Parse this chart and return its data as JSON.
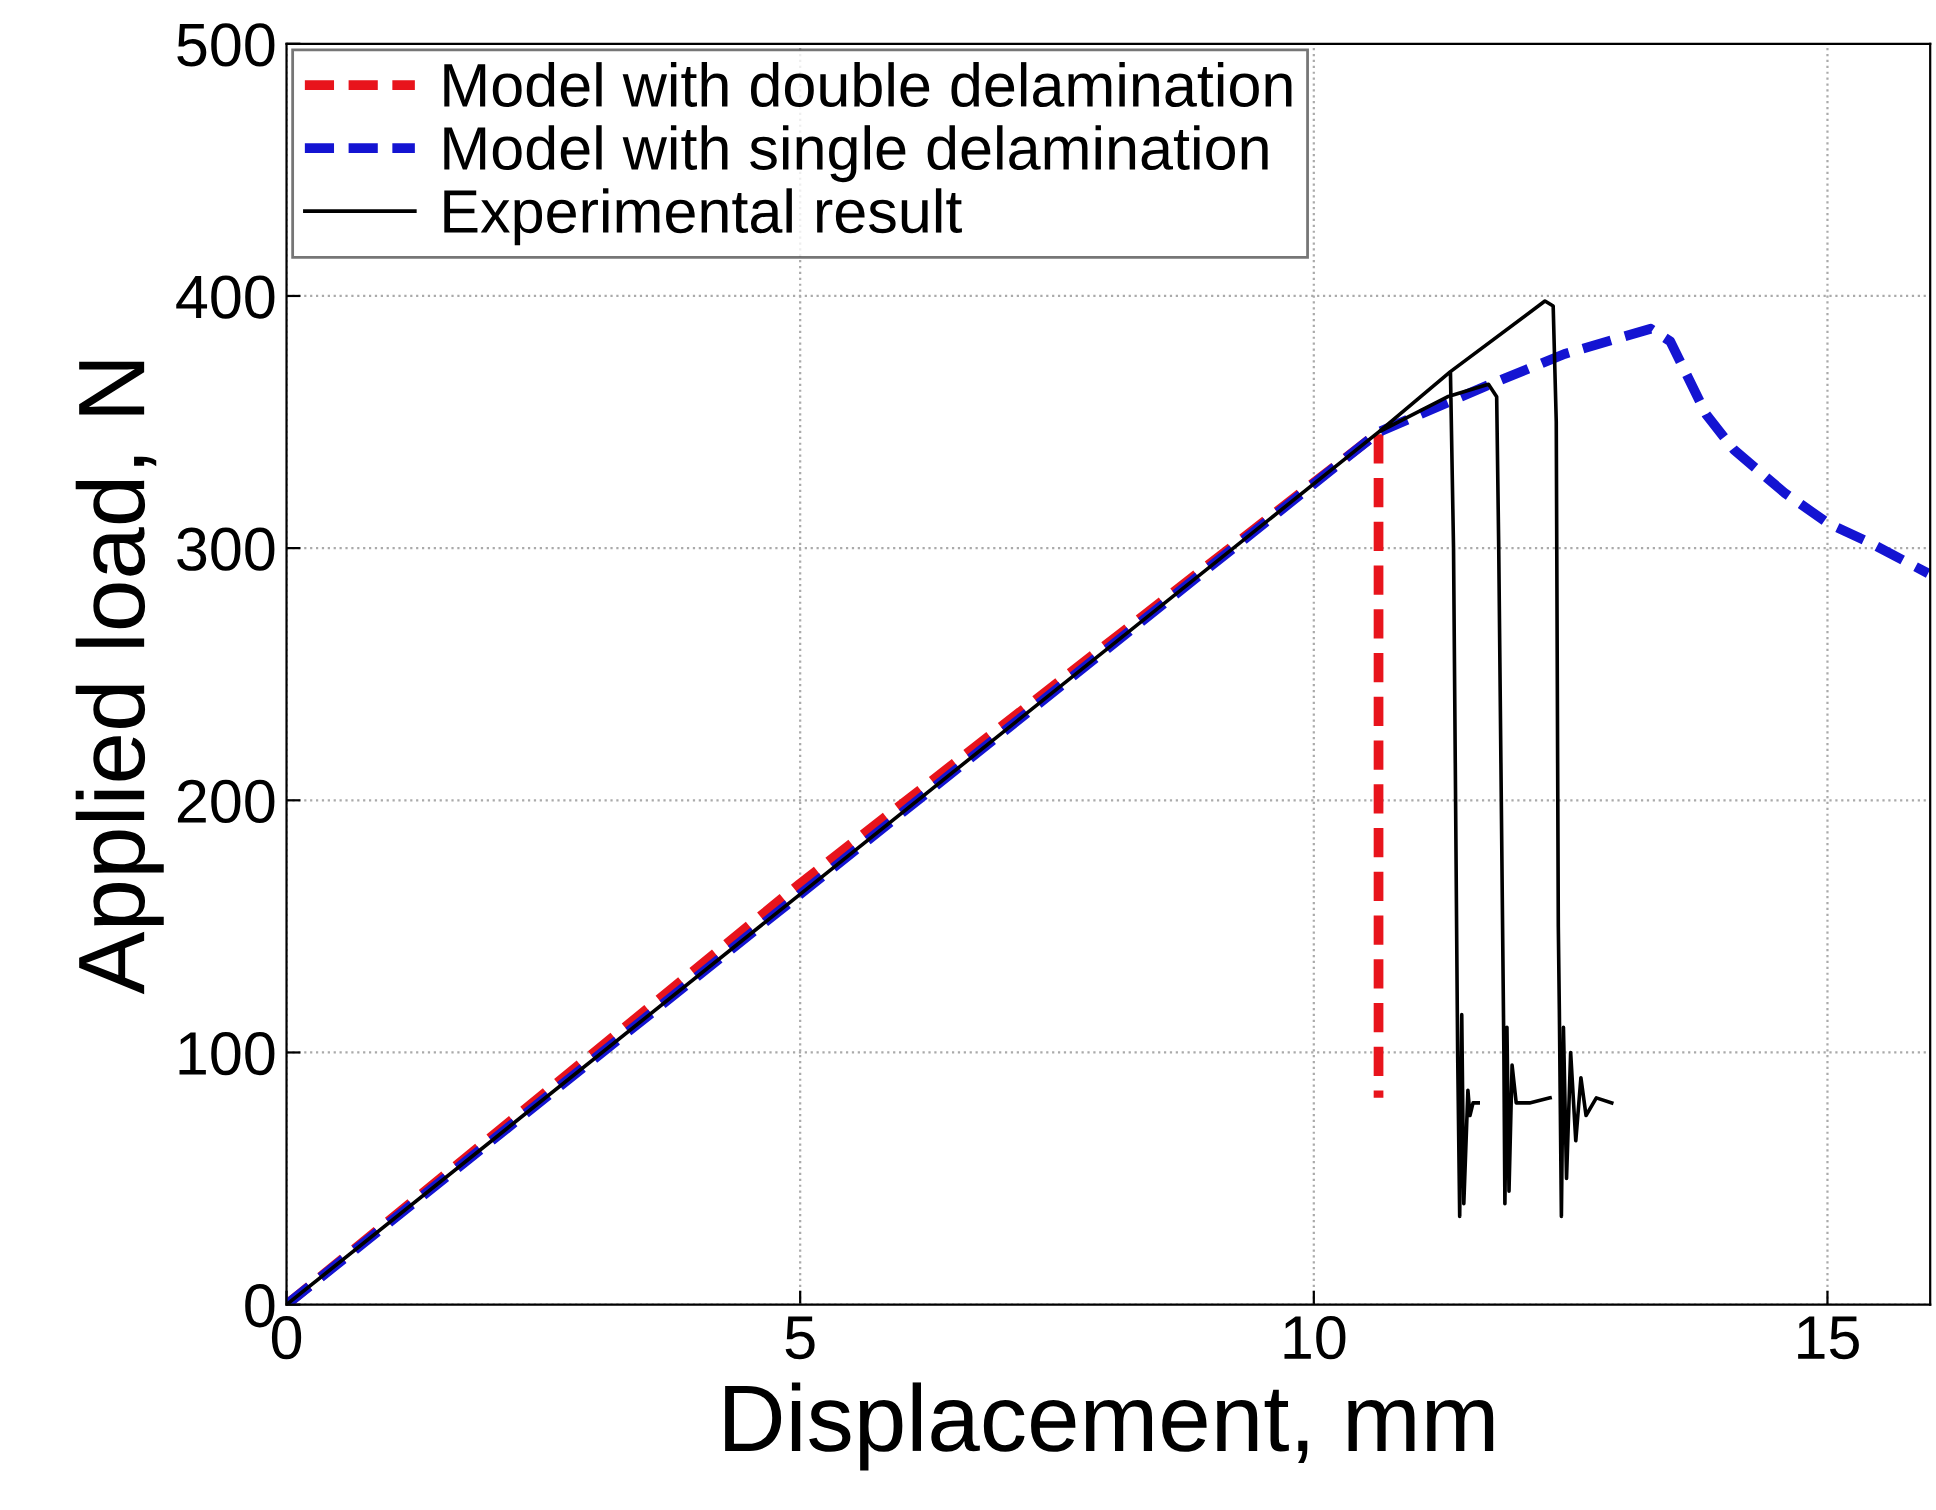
{
  "chart_data": {
    "type": "line",
    "xlabel": "Displacement, mm",
    "ylabel": "Applied load, N",
    "xlim": [
      0,
      16
    ],
    "ylim": [
      0,
      500
    ],
    "xticks": [
      0,
      5,
      10,
      15
    ],
    "yticks": [
      0,
      100,
      200,
      300,
      400,
      500
    ],
    "grid": true,
    "legend": "top left",
    "series": [
      {
        "name": "Model with double delamination",
        "color": "#e8141c",
        "line_style": "dashed",
        "x": [
          0,
          5,
          10.63,
          10.63
        ],
        "values": [
          0,
          167,
          346,
          82
        ]
      },
      {
        "name": "Model with single delamination",
        "color": "#1414d2",
        "line_style": "dashed",
        "x": [
          0,
          10.63,
          11.66,
          12.44,
          13.28,
          13.47,
          13.82,
          14.09,
          14.58,
          15.0,
          15.42,
          15.98
        ],
        "values": [
          0,
          346,
          364,
          377,
          387,
          382,
          353,
          339,
          322,
          310,
          302,
          290
        ]
      },
      {
        "name": "Experimental result",
        "color": "#000000",
        "line_style": "solid",
        "x": [
          0,
          10.63,
          11.33,
          11.36,
          11.4,
          11.42,
          11.44,
          11.46,
          11.5,
          11.52,
          11.55,
          11.6,
          null,
          0,
          10.63,
          11.3,
          11.7,
          11.78,
          11.8,
          11.85,
          11.86,
          11.88,
          11.9,
          11.93,
          11.97,
          12.1,
          12.3,
          null,
          0,
          10.63,
          11.33,
          12.25,
          12.33,
          12.36,
          12.38,
          12.39,
          12.41,
          12.43,
          12.46,
          12.5,
          12.55,
          12.6,
          12.65,
          12.75,
          12.9
        ],
        "values": [
          0,
          346,
          370,
          300,
          100,
          35,
          115,
          40,
          85,
          75,
          80,
          80,
          null,
          0,
          346,
          360,
          365,
          360,
          300,
          100,
          40,
          110,
          45,
          95,
          80,
          80,
          82,
          null,
          0,
          346,
          370,
          398,
          396,
          350,
          150,
          117,
          35,
          110,
          50,
          100,
          65,
          90,
          75,
          82,
          80
        ]
      }
    ]
  }
}
